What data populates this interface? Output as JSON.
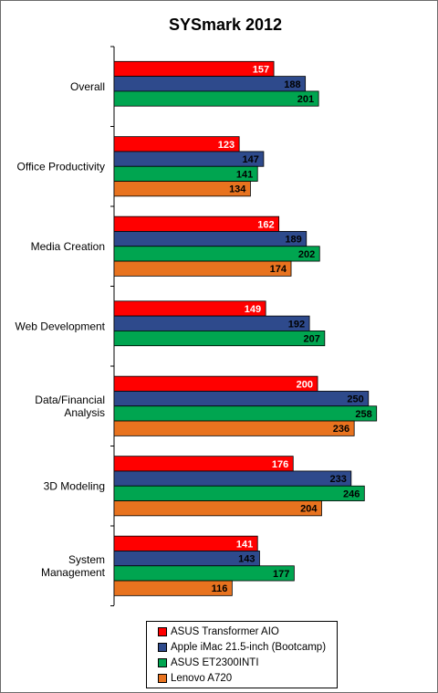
{
  "chart_data": {
    "type": "bar",
    "orientation": "horizontal",
    "title": "SYSmark  2012",
    "categories": [
      [
        "Overall"
      ],
      [
        "Office Productivity"
      ],
      [
        "Media Creation"
      ],
      [
        "Web Development"
      ],
      [
        "Data/Financial",
        "Analysis"
      ],
      [
        "3D Modeling"
      ],
      [
        "System",
        "Management"
      ]
    ],
    "series": [
      {
        "name": "ASUS Transformer AIO",
        "color": "#ff0000",
        "values": [
          157,
          123,
          162,
          149,
          200,
          176,
          141
        ]
      },
      {
        "name": "Apple iMac 21.5-inch (Bootcamp)",
        "color": "#2e4a8c",
        "values": [
          188,
          147,
          189,
          192,
          250,
          233,
          143
        ]
      },
      {
        "name": "ASUS ET2300INTI",
        "color": "#00a550",
        "values": [
          201,
          141,
          202,
          207,
          258,
          246,
          177
        ]
      },
      {
        "name": "Lenovo A720",
        "color": "#e8731f",
        "values": [
          null,
          134,
          174,
          null,
          236,
          204,
          116
        ]
      }
    ],
    "xlim": [
      0,
      278
    ],
    "grid": false,
    "data_labels": true,
    "legend_position": "bottom"
  }
}
